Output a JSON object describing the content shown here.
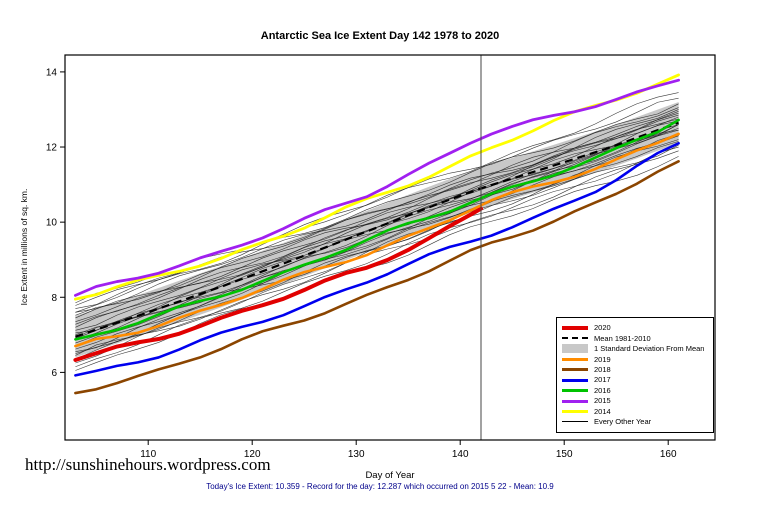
{
  "page": {
    "title": "Antarctic Sea Ice Extent Day 142 1978 to 2020",
    "watermark": "http://sunshinehours.wordpress.com",
    "footnote": "Today's Ice Extent: 10.359  - Record for the day: 12.287 which occurred on 2015 5 22  - Mean: 10.9"
  },
  "chart_data": {
    "type": "line",
    "title": "Antarctic Sea Ice Extent Day 142 1978 to 2020",
    "xlabel": "Day of Year",
    "ylabel": "Ice Extent in millions of sq. km.",
    "xlim": [
      102,
      164.5
    ],
    "ylim": [
      4.2,
      14.45
    ],
    "xticks": [
      110,
      120,
      130,
      140,
      150,
      160
    ],
    "yticks": [
      6,
      8,
      10,
      12,
      14
    ],
    "grid": false,
    "legend_position": "bottom-right",
    "marker_day": 142,
    "today_value": 10.359,
    "record_value": 12.287,
    "record_date": "2015 5 22",
    "mean_value_today": 10.9,
    "days": [
      103,
      110,
      117,
      124,
      131,
      138,
      142,
      148,
      154,
      161
    ],
    "mean_series": {
      "name": "Mean 1981-2010",
      "color": "#000000",
      "dash": "8 5",
      "width": 2.2,
      "values": [
        6.95,
        7.6,
        8.28,
        9.0,
        9.75,
        10.5,
        10.9,
        11.42,
        11.95,
        12.65
      ]
    },
    "sd_halfwidth": 0.55,
    "sd_color": "#C8C8C8",
    "series": [
      {
        "name": "2020",
        "color": "#E10000",
        "width": 4,
        "days": [
          103,
          110,
          117,
          124,
          131,
          138,
          142
        ],
        "values": [
          6.33,
          6.82,
          7.45,
          8.08,
          8.78,
          9.72,
          10.359
        ]
      },
      {
        "name": "2019",
        "color": "#FF8C00",
        "width": 2.6,
        "values": [
          6.7,
          7.18,
          7.82,
          8.5,
          9.18,
          9.95,
          10.45,
          11.0,
          11.55,
          12.35
        ]
      },
      {
        "name": "2018",
        "color": "#8B4500",
        "width": 2.6,
        "values": [
          5.45,
          5.98,
          6.62,
          7.32,
          8.05,
          8.82,
          9.3,
          9.95,
          10.62,
          11.62
        ]
      },
      {
        "name": "2017",
        "color": "#0000EE",
        "width": 2.6,
        "values": [
          5.92,
          6.35,
          6.98,
          7.68,
          8.42,
          9.18,
          9.6,
          10.22,
          10.95,
          12.1
        ]
      },
      {
        "name": "2016",
        "color": "#00C300",
        "width": 2.6,
        "values": [
          6.88,
          7.4,
          8.05,
          8.76,
          9.5,
          10.22,
          10.68,
          11.18,
          11.76,
          12.72
        ]
      },
      {
        "name": "2014",
        "color": "#FFFF00",
        "width": 2.8,
        "values": [
          7.95,
          8.45,
          9.06,
          9.76,
          10.56,
          11.36,
          11.88,
          12.55,
          13.18,
          13.92
        ]
      },
      {
        "name": "2015",
        "color": "#A020F0",
        "width": 2.8,
        "values": [
          8.05,
          8.6,
          9.22,
          9.92,
          10.72,
          11.7,
          12.287,
          12.72,
          13.22,
          13.78
        ]
      }
    ],
    "background_years": {
      "label": "Every Other Year",
      "color": "#1A1A1A",
      "width": 0.6,
      "start_end": [
        [
          6.05,
          11.75
        ],
        [
          6.15,
          12.0
        ],
        [
          6.25,
          12.3
        ],
        [
          6.35,
          11.9
        ],
        [
          6.45,
          12.15
        ],
        [
          6.5,
          12.45
        ],
        [
          6.55,
          12.6
        ],
        [
          6.62,
          12.05
        ],
        [
          6.7,
          12.35
        ],
        [
          6.78,
          12.7
        ],
        [
          6.85,
          12.2
        ],
        [
          6.92,
          12.5
        ],
        [
          7.0,
          12.85
        ],
        [
          7.05,
          12.3
        ],
        [
          7.12,
          12.6
        ],
        [
          7.2,
          12.95
        ],
        [
          7.28,
          12.45
        ],
        [
          7.35,
          12.75
        ],
        [
          7.45,
          13.05
        ],
        [
          7.52,
          12.6
        ],
        [
          7.6,
          12.9
        ],
        [
          7.7,
          13.15
        ],
        [
          7.78,
          12.8
        ],
        [
          7.85,
          13.3
        ],
        [
          7.6,
          13.45
        ],
        [
          6.9,
          13.0
        ]
      ]
    }
  },
  "legend": {
    "items": [
      {
        "label": "2020",
        "swatch": "line",
        "color": "#E10000",
        "weight": 4
      },
      {
        "label": "Mean 1981-2010",
        "swatch": "dashed",
        "color": "#000000",
        "weight": 2
      },
      {
        "label": "1 Standard Deviation From Mean",
        "swatch": "band",
        "color": "#C8C8C8",
        "weight": 9
      },
      {
        "label": "2019",
        "swatch": "line",
        "color": "#FF8C00",
        "weight": 3
      },
      {
        "label": "2018",
        "swatch": "line",
        "color": "#8B4500",
        "weight": 3
      },
      {
        "label": "2017",
        "swatch": "line",
        "color": "#0000EE",
        "weight": 3
      },
      {
        "label": "2016",
        "swatch": "line",
        "color": "#00C300",
        "weight": 3
      },
      {
        "label": "2015",
        "swatch": "line",
        "color": "#A020F0",
        "weight": 3
      },
      {
        "label": "2014",
        "swatch": "line",
        "color": "#FFFF00",
        "weight": 3
      },
      {
        "label": "Every Other Year",
        "swatch": "line",
        "color": "#000000",
        "weight": 1
      }
    ]
  }
}
